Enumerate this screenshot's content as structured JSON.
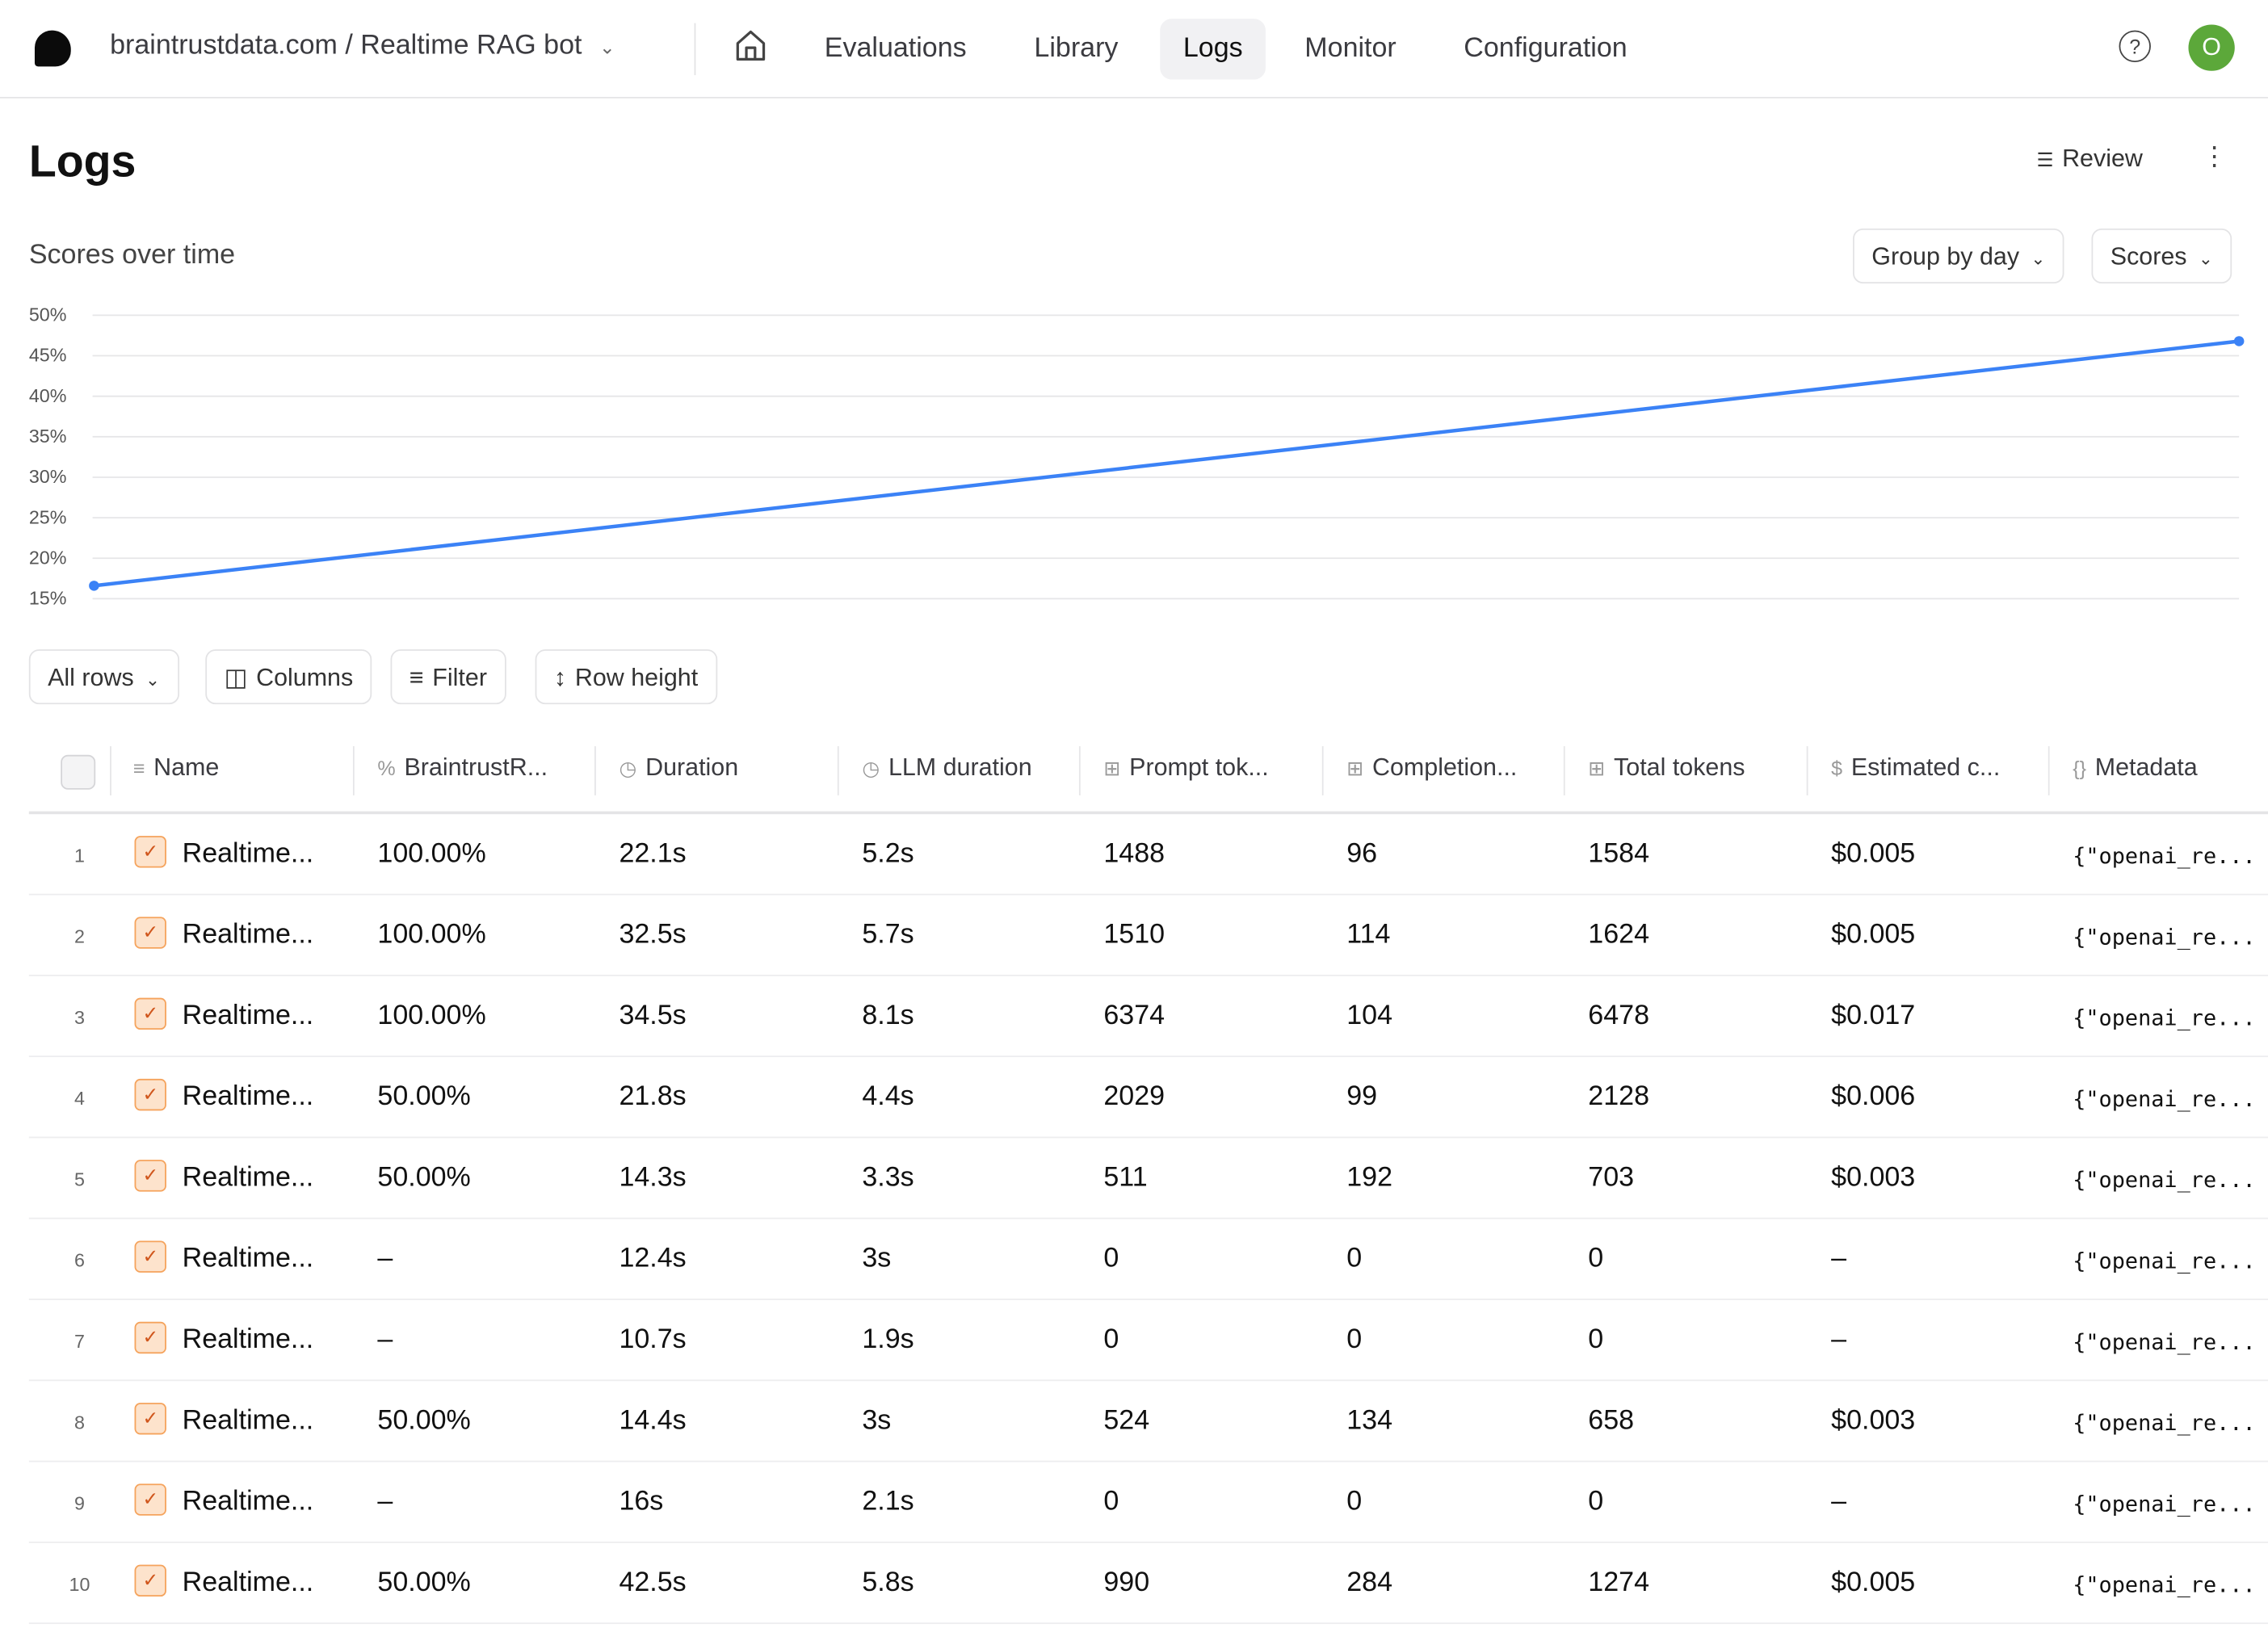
{
  "topbar": {
    "breadcrumb": "braintrustdata.com / Realtime RAG bot",
    "nav": [
      {
        "label": "Evaluations"
      },
      {
        "label": "Library"
      },
      {
        "label": "Logs",
        "active": true
      },
      {
        "label": "Monitor"
      },
      {
        "label": "Configuration"
      }
    ],
    "help": "?",
    "avatar": "O"
  },
  "page": {
    "title": "Logs",
    "review": "Review",
    "subtitle": "Scores over time",
    "group_by": "Group by day",
    "scores": "Scores"
  },
  "chart_data": {
    "type": "line",
    "title": "Scores over time",
    "yticks": [
      "50%",
      "45%",
      "40%",
      "35%",
      "30%",
      "25%",
      "20%",
      "15%"
    ],
    "ylim": [
      15,
      50
    ],
    "grid": true,
    "color": "#3b82f6",
    "series": [
      {
        "values": [
          16.6,
          46.8
        ]
      }
    ]
  },
  "toolbar": {
    "all_rows": "All rows",
    "columns": "Columns",
    "filter": "Filter",
    "row_height": "Row height"
  },
  "table": {
    "headers": [
      {
        "icon": "≡",
        "label": "Name"
      },
      {
        "icon": "%",
        "label": "BraintrustR..."
      },
      {
        "icon": "◷",
        "label": "Duration"
      },
      {
        "icon": "◷",
        "label": "LLM duration"
      },
      {
        "icon": "⊞",
        "label": "Prompt tok..."
      },
      {
        "icon": "⊞",
        "label": "Completion..."
      },
      {
        "icon": "⊞",
        "label": "Total tokens"
      },
      {
        "icon": "$",
        "label": "Estimated c..."
      },
      {
        "icon": "{}",
        "label": "Metadata"
      }
    ],
    "rows": [
      [
        "1",
        "Realtime...",
        "100.00%",
        "22.1s",
        "5.2s",
        "1488",
        "96",
        "1584",
        "$0.005",
        "{\"openai_re..."
      ],
      [
        "2",
        "Realtime...",
        "100.00%",
        "32.5s",
        "5.7s",
        "1510",
        "114",
        "1624",
        "$0.005",
        "{\"openai_re..."
      ],
      [
        "3",
        "Realtime...",
        "100.00%",
        "34.5s",
        "8.1s",
        "6374",
        "104",
        "6478",
        "$0.017",
        "{\"openai_re..."
      ],
      [
        "4",
        "Realtime...",
        "50.00%",
        "21.8s",
        "4.4s",
        "2029",
        "99",
        "2128",
        "$0.006",
        "{\"openai_re..."
      ],
      [
        "5",
        "Realtime...",
        "50.00%",
        "14.3s",
        "3.3s",
        "511",
        "192",
        "703",
        "$0.003",
        "{\"openai_re..."
      ],
      [
        "6",
        "Realtime...",
        "–",
        "12.4s",
        "3s",
        "0",
        "0",
        "0",
        "–",
        "{\"openai_re..."
      ],
      [
        "7",
        "Realtime...",
        "–",
        "10.7s",
        "1.9s",
        "0",
        "0",
        "0",
        "–",
        "{\"openai_re..."
      ],
      [
        "8",
        "Realtime...",
        "50.00%",
        "14.4s",
        "3s",
        "524",
        "134",
        "658",
        "$0.003",
        "{\"openai_re..."
      ],
      [
        "9",
        "Realtime...",
        "–",
        "16s",
        "2.1s",
        "0",
        "0",
        "0",
        "–",
        "{\"openai_re..."
      ],
      [
        "10",
        "Realtime...",
        "50.00%",
        "42.5s",
        "5.8s",
        "990",
        "284",
        "1274",
        "$0.005",
        "{\"openai_re..."
      ]
    ]
  }
}
